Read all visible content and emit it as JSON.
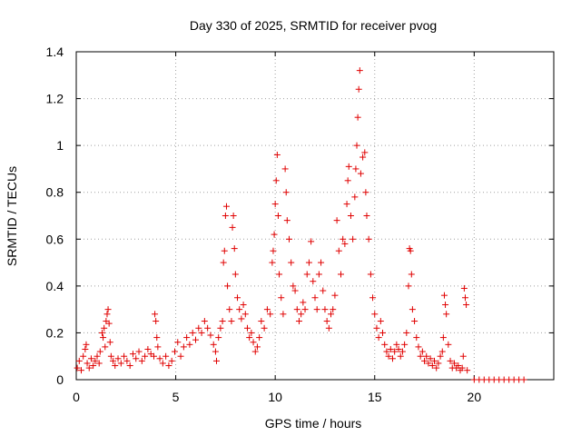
{
  "chart_data": {
    "type": "scatter",
    "title": "Day 330 of 2025, SRMTID for receiver pvog",
    "xlabel": "GPS time / hours",
    "ylabel": "SRMTID / TECUs",
    "xlim": [
      0,
      24
    ],
    "ylim": [
      0,
      1.4
    ],
    "xticks": [
      0,
      5,
      10,
      15,
      20
    ],
    "yticks": [
      0,
      0.2,
      0.4,
      0.6,
      0.8,
      1,
      1.2,
      1.4
    ],
    "ytick_labels": [
      "0",
      "0.2",
      "0.4",
      "0.6",
      "0.8",
      "1",
      "1.2",
      "1.4"
    ],
    "grid": true,
    "marker": "+",
    "color": "#e00000",
    "series": [
      {
        "name": "SRMTID",
        "points": [
          [
            0.05,
            0.05
          ],
          [
            0.15,
            0.08
          ],
          [
            0.25,
            0.04
          ],
          [
            0.35,
            0.1
          ],
          [
            0.45,
            0.13
          ],
          [
            0.5,
            0.15
          ],
          [
            0.55,
            0.07
          ],
          [
            0.65,
            0.05
          ],
          [
            0.75,
            0.09
          ],
          [
            0.85,
            0.06
          ],
          [
            0.95,
            0.08
          ],
          [
            1.05,
            0.1
          ],
          [
            1.15,
            0.07
          ],
          [
            1.2,
            0.12
          ],
          [
            1.3,
            0.2
          ],
          [
            1.35,
            0.18
          ],
          [
            1.4,
            0.22
          ],
          [
            1.45,
            0.14
          ],
          [
            1.5,
            0.25
          ],
          [
            1.55,
            0.28
          ],
          [
            1.6,
            0.3
          ],
          [
            1.65,
            0.24
          ],
          [
            1.7,
            0.16
          ],
          [
            1.75,
            0.1
          ],
          [
            1.85,
            0.08
          ],
          [
            1.95,
            0.06
          ],
          [
            2.1,
            0.09
          ],
          [
            2.25,
            0.07
          ],
          [
            2.4,
            0.1
          ],
          [
            2.55,
            0.08
          ],
          [
            2.7,
            0.06
          ],
          [
            2.85,
            0.11
          ],
          [
            3.0,
            0.09
          ],
          [
            3.15,
            0.12
          ],
          [
            3.3,
            0.08
          ],
          [
            3.45,
            0.1
          ],
          [
            3.6,
            0.13
          ],
          [
            3.75,
            0.11
          ],
          [
            3.9,
            0.1
          ],
          [
            3.95,
            0.28
          ],
          [
            4.0,
            0.25
          ],
          [
            4.05,
            0.18
          ],
          [
            4.1,
            0.14
          ],
          [
            4.2,
            0.09
          ],
          [
            4.35,
            0.07
          ],
          [
            4.5,
            0.1
          ],
          [
            4.65,
            0.06
          ],
          [
            4.8,
            0.08
          ],
          [
            4.95,
            0.12
          ],
          [
            5.1,
            0.16
          ],
          [
            5.25,
            0.1
          ],
          [
            5.4,
            0.14
          ],
          [
            5.55,
            0.18
          ],
          [
            5.7,
            0.15
          ],
          [
            5.85,
            0.2
          ],
          [
            6.0,
            0.17
          ],
          [
            6.15,
            0.22
          ],
          [
            6.3,
            0.2
          ],
          [
            6.45,
            0.25
          ],
          [
            6.6,
            0.22
          ],
          [
            6.75,
            0.19
          ],
          [
            6.9,
            0.15
          ],
          [
            7.0,
            0.12
          ],
          [
            7.05,
            0.08
          ],
          [
            7.15,
            0.18
          ],
          [
            7.25,
            0.22
          ],
          [
            7.35,
            0.25
          ],
          [
            7.4,
            0.5
          ],
          [
            7.45,
            0.55
          ],
          [
            7.5,
            0.7
          ],
          [
            7.55,
            0.74
          ],
          [
            7.6,
            0.4
          ],
          [
            7.7,
            0.3
          ],
          [
            7.8,
            0.25
          ],
          [
            7.85,
            0.65
          ],
          [
            7.9,
            0.7
          ],
          [
            7.95,
            0.56
          ],
          [
            8.0,
            0.45
          ],
          [
            8.1,
            0.35
          ],
          [
            8.2,
            0.3
          ],
          [
            8.3,
            0.26
          ],
          [
            8.4,
            0.32
          ],
          [
            8.5,
            0.28
          ],
          [
            8.6,
            0.22
          ],
          [
            8.7,
            0.18
          ],
          [
            8.8,
            0.2
          ],
          [
            8.9,
            0.16
          ],
          [
            9.0,
            0.12
          ],
          [
            9.1,
            0.14
          ],
          [
            9.2,
            0.18
          ],
          [
            9.3,
            0.25
          ],
          [
            9.45,
            0.22
          ],
          [
            9.6,
            0.3
          ],
          [
            9.75,
            0.28
          ],
          [
            9.85,
            0.5
          ],
          [
            9.9,
            0.55
          ],
          [
            9.95,
            0.62
          ],
          [
            10.0,
            0.75
          ],
          [
            10.05,
            0.85
          ],
          [
            10.1,
            0.96
          ],
          [
            10.15,
            0.7
          ],
          [
            10.2,
            0.45
          ],
          [
            10.3,
            0.35
          ],
          [
            10.4,
            0.28
          ],
          [
            10.5,
            0.9
          ],
          [
            10.55,
            0.8
          ],
          [
            10.6,
            0.68
          ],
          [
            10.7,
            0.6
          ],
          [
            10.8,
            0.5
          ],
          [
            10.9,
            0.4
          ],
          [
            11.0,
            0.38
          ],
          [
            11.1,
            0.3
          ],
          [
            11.2,
            0.25
          ],
          [
            11.3,
            0.28
          ],
          [
            11.4,
            0.33
          ],
          [
            11.5,
            0.3
          ],
          [
            11.6,
            0.45
          ],
          [
            11.7,
            0.5
          ],
          [
            11.8,
            0.59
          ],
          [
            11.9,
            0.42
          ],
          [
            12.0,
            0.35
          ],
          [
            12.1,
            0.3
          ],
          [
            12.2,
            0.45
          ],
          [
            12.3,
            0.5
          ],
          [
            12.4,
            0.38
          ],
          [
            12.5,
            0.3
          ],
          [
            12.6,
            0.25
          ],
          [
            12.7,
            0.22
          ],
          [
            12.8,
            0.28
          ],
          [
            12.9,
            0.3
          ],
          [
            13.0,
            0.36
          ],
          [
            13.1,
            0.68
          ],
          [
            13.2,
            0.55
          ],
          [
            13.3,
            0.45
          ],
          [
            13.4,
            0.6
          ],
          [
            13.5,
            0.58
          ],
          [
            13.6,
            0.75
          ],
          [
            13.65,
            0.85
          ],
          [
            13.7,
            0.91
          ],
          [
            13.8,
            0.7
          ],
          [
            13.9,
            0.6
          ],
          [
            14.0,
            0.78
          ],
          [
            14.05,
            0.9
          ],
          [
            14.1,
            1.0
          ],
          [
            14.15,
            1.12
          ],
          [
            14.2,
            1.24
          ],
          [
            14.25,
            1.32
          ],
          [
            14.3,
            0.88
          ],
          [
            14.4,
            0.95
          ],
          [
            14.5,
            0.97
          ],
          [
            14.55,
            0.8
          ],
          [
            14.6,
            0.7
          ],
          [
            14.7,
            0.6
          ],
          [
            14.8,
            0.45
          ],
          [
            14.9,
            0.35
          ],
          [
            15.0,
            0.28
          ],
          [
            15.1,
            0.22
          ],
          [
            15.2,
            0.18
          ],
          [
            15.3,
            0.25
          ],
          [
            15.4,
            0.2
          ],
          [
            15.5,
            0.15
          ],
          [
            15.6,
            0.12
          ],
          [
            15.7,
            0.1
          ],
          [
            15.8,
            0.13
          ],
          [
            15.9,
            0.09
          ],
          [
            16.0,
            0.12
          ],
          [
            16.1,
            0.15
          ],
          [
            16.2,
            0.13
          ],
          [
            16.3,
            0.1
          ],
          [
            16.4,
            0.12
          ],
          [
            16.5,
            0.15
          ],
          [
            16.6,
            0.2
          ],
          [
            16.7,
            0.4
          ],
          [
            16.75,
            0.56
          ],
          [
            16.8,
            0.55
          ],
          [
            16.85,
            0.45
          ],
          [
            16.9,
            0.3
          ],
          [
            17.0,
            0.25
          ],
          [
            17.1,
            0.18
          ],
          [
            17.2,
            0.14
          ],
          [
            17.3,
            0.1
          ],
          [
            17.4,
            0.12
          ],
          [
            17.5,
            0.08
          ],
          [
            17.6,
            0.1
          ],
          [
            17.7,
            0.07
          ],
          [
            17.8,
            0.09
          ],
          [
            17.9,
            0.06
          ],
          [
            18.0,
            0.08
          ],
          [
            18.1,
            0.05
          ],
          [
            18.2,
            0.07
          ],
          [
            18.3,
            0.1
          ],
          [
            18.4,
            0.12
          ],
          [
            18.45,
            0.18
          ],
          [
            18.5,
            0.36
          ],
          [
            18.55,
            0.32
          ],
          [
            18.6,
            0.28
          ],
          [
            18.7,
            0.15
          ],
          [
            18.8,
            0.08
          ],
          [
            18.9,
            0.05
          ],
          [
            19.0,
            0.07
          ],
          [
            19.1,
            0.05
          ],
          [
            19.2,
            0.06
          ],
          [
            19.3,
            0.04
          ],
          [
            19.4,
            0.05
          ],
          [
            19.45,
            0.1
          ],
          [
            19.5,
            0.39
          ],
          [
            19.55,
            0.35
          ],
          [
            19.6,
            0.32
          ],
          [
            19.65,
            0.04
          ],
          [
            20.0,
            0.0
          ],
          [
            20.25,
            0.0
          ],
          [
            20.5,
            0.0
          ],
          [
            20.75,
            0.0
          ],
          [
            21.0,
            0.0
          ],
          [
            21.25,
            0.0
          ],
          [
            21.5,
            0.0
          ],
          [
            21.75,
            0.0
          ],
          [
            22.0,
            0.0
          ],
          [
            22.25,
            0.0
          ],
          [
            22.5,
            0.0
          ]
        ]
      }
    ]
  }
}
